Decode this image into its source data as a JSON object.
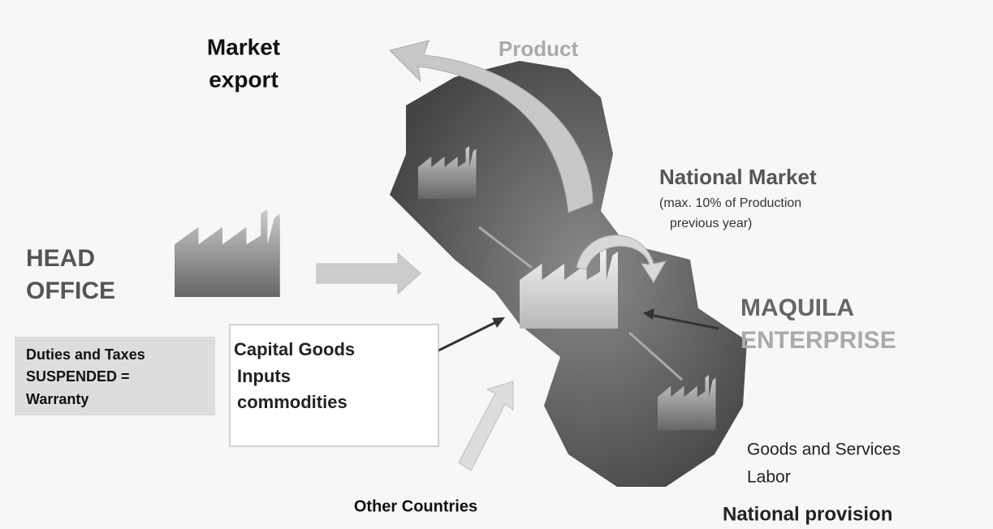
{
  "market_export": [
    "Market",
    "export"
  ],
  "product": "Product",
  "national_market": {
    "title": "National Market",
    "note": [
      "(max. 10% of Production",
      "previous year)"
    ]
  },
  "head_office": [
    "HEAD",
    "OFFICE"
  ],
  "maquila_enterprise": [
    "MAQUILA",
    "ENTERPRISE"
  ],
  "duties_box": [
    "Duties and Taxes",
    "SUSPENDED =",
    "Warranty"
  ],
  "capital_box": [
    "Capital Goods",
    "Inputs",
    "commodities"
  ],
  "other_countries": "Other Countries",
  "national_provision": {
    "items": [
      "Goods and Services",
      "Labor"
    ],
    "title": "National provision"
  }
}
